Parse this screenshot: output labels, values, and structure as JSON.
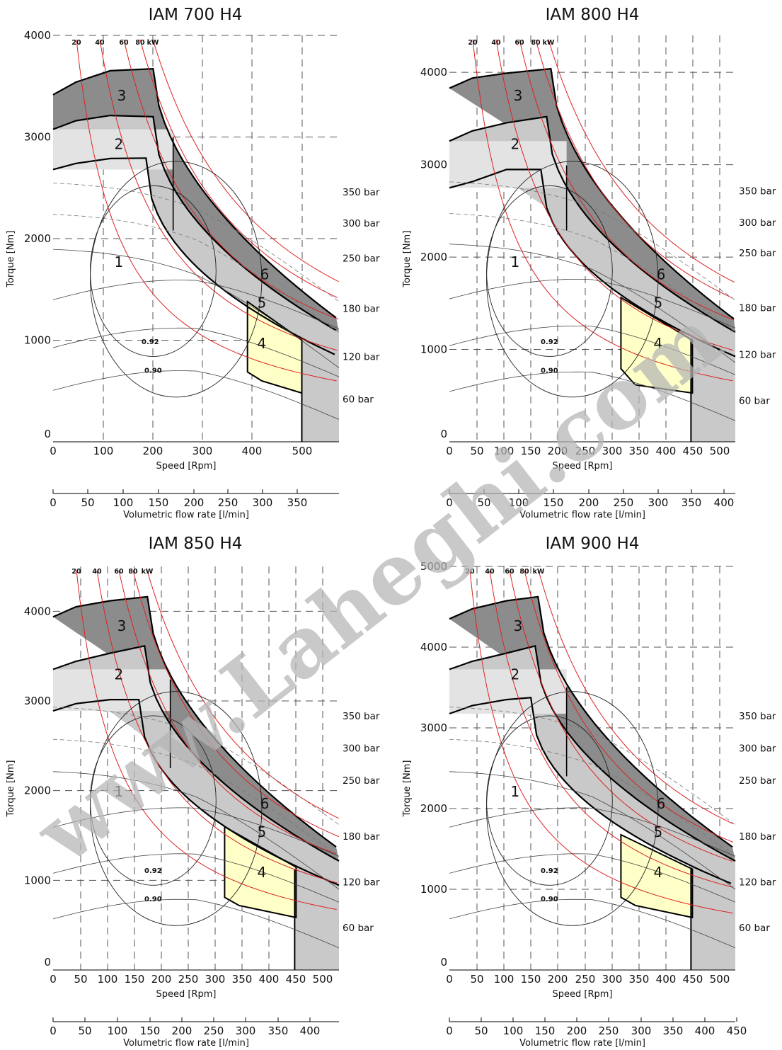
{
  "watermark": "www.Laheghi.com",
  "chart_data": [
    {
      "type": "line",
      "title": "IAM 700 H4",
      "xlabel": "Speed [Rpm]",
      "ylabel": "Torque [Nm]",
      "flow_label": "Volumetric flow rate [l/min]",
      "xlim": [
        0,
        580
      ],
      "ylim": [
        0,
        4000
      ],
      "x_ticks": [
        "0",
        "100",
        "200",
        "300",
        "400",
        "500"
      ],
      "y_ticks": [
        "0",
        "1000",
        "2000",
        "3000",
        "4000"
      ],
      "flow_ticks": [
        "0",
        "50",
        "100",
        "150",
        "200",
        "250",
        "300",
        "350"
      ],
      "power_labels": [
        "20",
        "40",
        "60",
        "80",
        "kW"
      ],
      "pressure_labels": [
        "350 bar",
        "300 bar",
        "250 bar",
        "180 bar",
        "120 bar",
        "60 bar"
      ],
      "efficiency_labels": [
        "0.92",
        "0.90"
      ],
      "zones": [
        "1",
        "2",
        "3",
        "4",
        "5",
        "6"
      ],
      "curves": {
        "zone1_max_torque": [
          [
            0,
            2500
          ],
          [
            80,
            2620
          ],
          [
            190,
            2700
          ],
          [
            580,
            1100
          ]
        ],
        "zone2_max_torque": [
          [
            0,
            3000
          ],
          [
            80,
            3100
          ],
          [
            200,
            3200
          ],
          [
            580,
            1100
          ]
        ],
        "zone3_max_torque": [
          [
            0,
            3400
          ],
          [
            80,
            3580
          ],
          [
            210,
            3700
          ],
          [
            580,
            1300
          ]
        ]
      },
      "zone4_area": [
        [
          350,
          1290
        ],
        [
          350,
          640
        ],
        [
          500,
          450
        ],
        [
          500,
          1000
        ]
      ]
    },
    {
      "type": "line",
      "title": "IAM 800 H4",
      "xlabel": "Speed [Rpm]",
      "ylabel": "Torque [Nm]",
      "flow_label": "Volumetric flow rate [l/min]",
      "xlim": [
        0,
        525
      ],
      "ylim": [
        0,
        4400
      ],
      "x_ticks": [
        "0",
        "50",
        "100",
        "150",
        "200",
        "250",
        "300",
        "350",
        "400",
        "450",
        "500"
      ],
      "y_ticks": [
        "0",
        "1000",
        "2000",
        "3000",
        "4000"
      ],
      "flow_ticks": [
        "0",
        "50",
        "100",
        "150",
        "200",
        "250",
        "300",
        "350",
        "400"
      ],
      "power_labels": [
        "20",
        "40",
        "60",
        "80",
        "kW"
      ],
      "pressure_labels": [
        "350 bar",
        "300 bar",
        "250 bar",
        "180 bar",
        "120 bar",
        "60 bar"
      ],
      "efficiency_labels": [
        "0.92",
        "0.90"
      ],
      "zones": [
        "1",
        "2",
        "3",
        "4",
        "5",
        "6"
      ]
    },
    {
      "type": "line",
      "title": "IAM 850 H4",
      "xlabel": "Speed [Rpm]",
      "ylabel": "Torque [Nm]",
      "flow_label": "Volumetric flow rate [l/min]",
      "xlim": [
        0,
        525
      ],
      "ylim": [
        0,
        4500
      ],
      "x_ticks": [
        "0",
        "50",
        "100",
        "150",
        "200",
        "250",
        "300",
        "350",
        "400",
        "450",
        "500"
      ],
      "y_ticks": [
        "0",
        "1000",
        "2000",
        "3000",
        "4000"
      ],
      "flow_ticks": [
        "0",
        "50",
        "100",
        "150",
        "200",
        "250",
        "300",
        "350",
        "400"
      ],
      "power_labels": [
        "20",
        "40",
        "60",
        "80",
        "kW"
      ],
      "pressure_labels": [
        "350 bar",
        "300 bar",
        "250 bar",
        "180 bar",
        "120 bar",
        "60 bar"
      ],
      "efficiency_labels": [
        "0.92",
        "0.90"
      ],
      "zones": [
        "1",
        "2",
        "3",
        "4",
        "5",
        "6"
      ]
    },
    {
      "type": "line",
      "title": "IAM 900 H4",
      "xlabel": "Speed [Rpm]",
      "ylabel": "Torque [Nm]",
      "flow_label": "Volumetric flow rate [l/min]",
      "xlim": [
        0,
        525
      ],
      "ylim": [
        0,
        5000
      ],
      "x_ticks": [
        "0",
        "50",
        "100",
        "150",
        "200",
        "250",
        "300",
        "350",
        "400",
        "450",
        "500"
      ],
      "y_ticks": [
        "0",
        "1000",
        "2000",
        "3000",
        "4000",
        "5000"
      ],
      "flow_ticks": [
        "0",
        "50",
        "100",
        "150",
        "200",
        "250",
        "300",
        "350",
        "400",
        "450"
      ],
      "power_labels": [
        "20",
        "40",
        "60",
        "80",
        "kW"
      ],
      "pressure_labels": [
        "350 bar",
        "300 bar",
        "250 bar",
        "180 bar",
        "120 bar",
        "60 bar"
      ],
      "efficiency_labels": [
        "0.92",
        "0.90"
      ],
      "zones": [
        "1",
        "2",
        "3",
        "4",
        "5",
        "6"
      ]
    }
  ]
}
